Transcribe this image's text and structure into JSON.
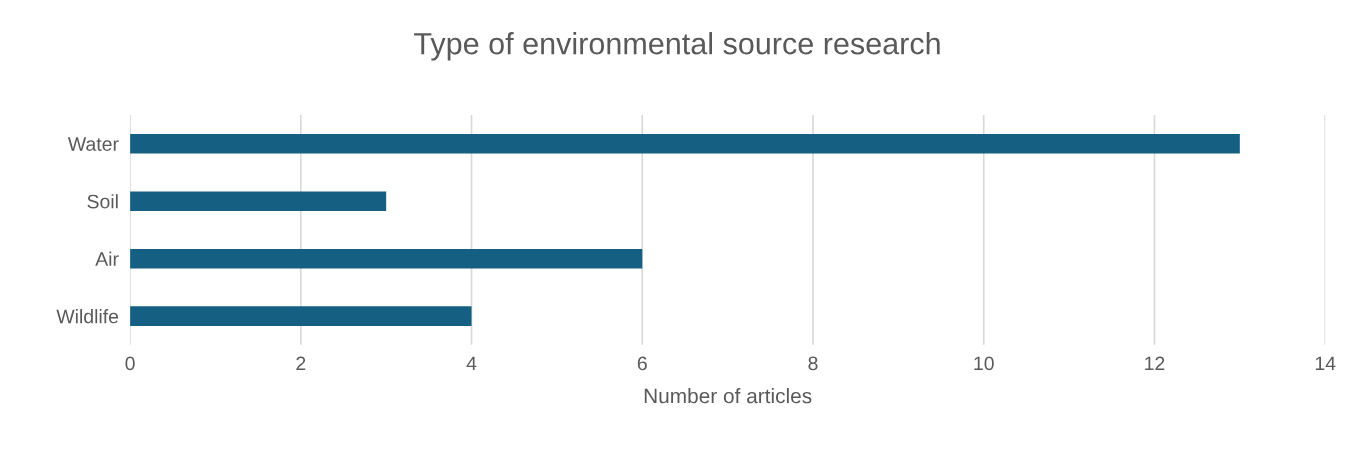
{
  "chart_data": {
    "type": "bar",
    "orientation": "horizontal",
    "title": "Type of environmental source research",
    "xlabel": "Number of articles",
    "categories": [
      "Water",
      "Soil",
      "Air",
      "Wildlife"
    ],
    "values": [
      13,
      3,
      6,
      4
    ],
    "color": "#156082",
    "xlim": [
      0,
      14
    ],
    "xticks": [
      0,
      2,
      4,
      6,
      8,
      10,
      12,
      14
    ],
    "grid": "x"
  }
}
